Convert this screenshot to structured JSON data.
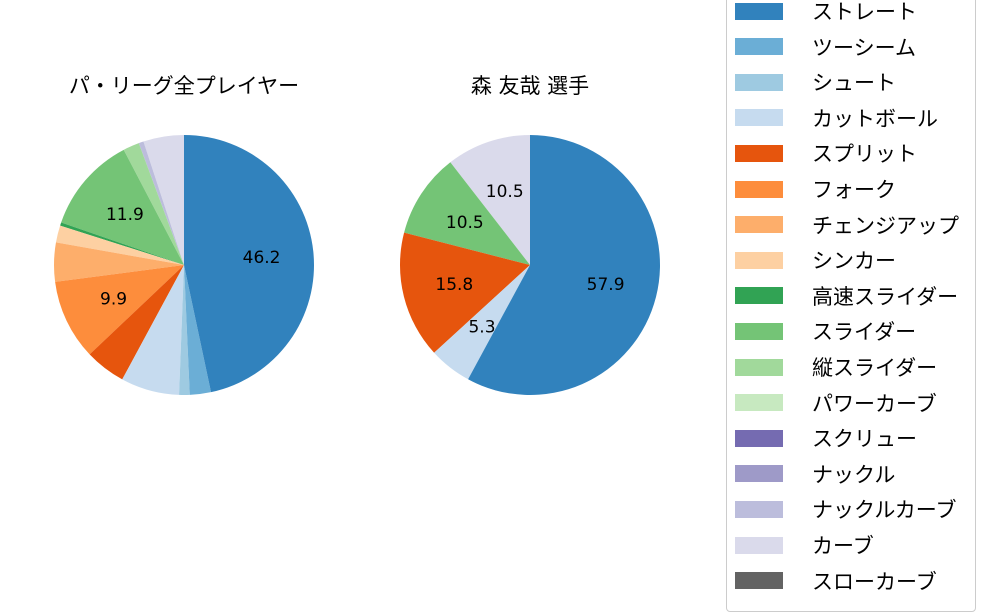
{
  "legend": [
    {
      "label": "ストレート",
      "color": "#3182bd"
    },
    {
      "label": "ツーシーム",
      "color": "#6baed6"
    },
    {
      "label": "シュート",
      "color": "#9ecae1"
    },
    {
      "label": "カットボール",
      "color": "#c6dbef"
    },
    {
      "label": "スプリット",
      "color": "#e6550d"
    },
    {
      "label": "フォーク",
      "color": "#fd8d3c"
    },
    {
      "label": "チェンジアップ",
      "color": "#fdae6b"
    },
    {
      "label": "シンカー",
      "color": "#fdd0a2"
    },
    {
      "label": "高速スライダー",
      "color": "#31a354"
    },
    {
      "label": "スライダー",
      "color": "#74c476"
    },
    {
      "label": "縦スライダー",
      "color": "#a1d99b"
    },
    {
      "label": "パワーカーブ",
      "color": "#c7e9c0"
    },
    {
      "label": "スクリュー",
      "color": "#756bb1"
    },
    {
      "label": "ナックル",
      "color": "#9e9ac8"
    },
    {
      "label": "ナックルカーブ",
      "color": "#bcbddc"
    },
    {
      "label": "カーブ",
      "color": "#dadaeb"
    },
    {
      "label": "スローカーブ",
      "color": "#636363"
    }
  ],
  "chart_data": [
    {
      "type": "pie",
      "title": "パ・リーグ全プレイヤー",
      "start_angle": 90,
      "direction": "clockwise",
      "slices": [
        {
          "label": "ストレート",
          "value": 46.2,
          "color": "#3182bd",
          "show_label": true
        },
        {
          "label": "ツーシーム",
          "value": 2.6,
          "color": "#6baed6"
        },
        {
          "label": "シュート",
          "value": 1.3,
          "color": "#9ecae1"
        },
        {
          "label": "カットボール",
          "value": 7.2,
          "color": "#c6dbef"
        },
        {
          "label": "スプリット",
          "value": 5.0,
          "color": "#e6550d"
        },
        {
          "label": "フォーク",
          "value": 9.9,
          "color": "#fd8d3c",
          "show_label": true
        },
        {
          "label": "チェンジアップ",
          "value": 4.8,
          "color": "#fdae6b"
        },
        {
          "label": "シンカー",
          "value": 2.1,
          "color": "#fdd0a2"
        },
        {
          "label": "高速スライダー",
          "value": 0.4,
          "color": "#31a354"
        },
        {
          "label": "スライダー",
          "value": 11.9,
          "color": "#74c476",
          "show_label": true
        },
        {
          "label": "縦スライダー",
          "value": 2.0,
          "color": "#a1d99b"
        },
        {
          "label": "ナックルカーブ",
          "value": 0.6,
          "color": "#bcbddc"
        },
        {
          "label": "カーブ",
          "value": 5.0,
          "color": "#dadaeb"
        }
      ]
    },
    {
      "type": "pie",
      "title": "森 友哉  選手",
      "start_angle": 90,
      "direction": "clockwise",
      "slices": [
        {
          "label": "ストレート",
          "value": 57.9,
          "color": "#3182bd",
          "show_label": true
        },
        {
          "label": "カットボール",
          "value": 5.3,
          "color": "#c6dbef",
          "show_label": true
        },
        {
          "label": "スプリット",
          "value": 15.8,
          "color": "#e6550d",
          "show_label": true
        },
        {
          "label": "スライダー",
          "value": 10.5,
          "color": "#74c476",
          "show_label": true
        },
        {
          "label": "カーブ",
          "value": 10.5,
          "color": "#dadaeb",
          "show_label": true
        }
      ]
    }
  ]
}
